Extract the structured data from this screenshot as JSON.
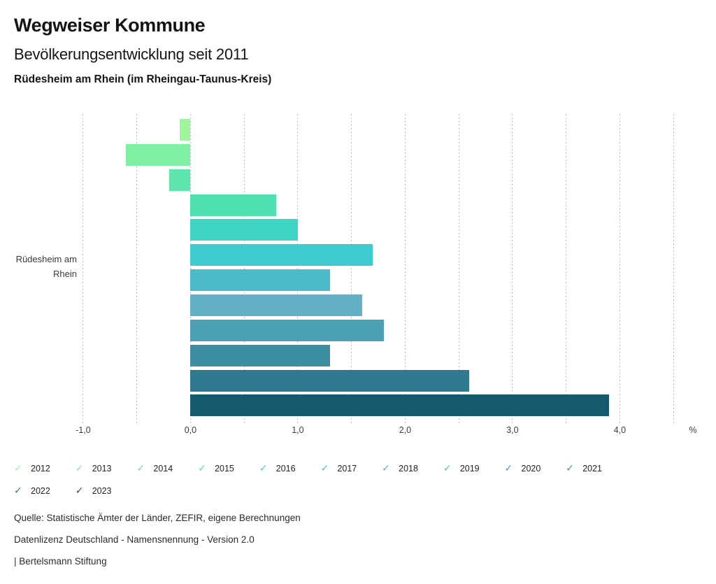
{
  "header": {
    "title": "Wegweiser Kommune",
    "subtitle": "Bevölkerungsentwicklung seit 2011",
    "region": "Rüdesheim am Rhein (im Rheingau-Taunus-Kreis)"
  },
  "chart_data": {
    "type": "bar",
    "orientation": "horizontal",
    "title": "Bevölkerungsentwicklung seit 2011",
    "group_label": "Rüdesheim am Rhein",
    "group_label_lines": [
      "Rüdesheim am",
      "Rhein"
    ],
    "categories": [
      "2012",
      "2013",
      "2014",
      "2015",
      "2016",
      "2017",
      "2018",
      "2019",
      "2020",
      "2021",
      "2022",
      "2023"
    ],
    "values": [
      -0.1,
      -0.6,
      -0.2,
      0.8,
      1.0,
      1.7,
      1.3,
      1.6,
      1.8,
      1.3,
      2.6,
      3.9
    ],
    "colors": [
      "#9df69b",
      "#7ff0a3",
      "#5fe6ae",
      "#4fe0b1",
      "#3ed5c5",
      "#3fc9d0",
      "#4cbccb",
      "#63b1c7",
      "#4ba0b4",
      "#3d8ea2",
      "#2f7a90",
      "#15596f"
    ],
    "unit": "%",
    "xlim": [
      -1.0,
      4.5
    ],
    "grid": true,
    "grid_step": 0.5,
    "xticks": [
      -1.0,
      0.0,
      1.0,
      2.0,
      3.0,
      4.0
    ],
    "xtick_labels": [
      "-1,0",
      "0,0",
      "1,0",
      "2,0",
      "3,0",
      "4,0"
    ],
    "legend_position": "bottom"
  },
  "legend": {
    "items": [
      {
        "label": "2012",
        "check": "✓",
        "color": "#9df69b"
      },
      {
        "label": "2013",
        "check": "✓",
        "color": "#7ff0a3"
      },
      {
        "label": "2014",
        "check": "✓",
        "color": "#5fe6ae"
      },
      {
        "label": "2015",
        "check": "✓",
        "color": "#4fe0b1"
      },
      {
        "label": "2016",
        "check": "✓",
        "color": "#3ed5c5"
      },
      {
        "label": "2017",
        "check": "✓",
        "color": "#3fc9d0"
      },
      {
        "label": "2018",
        "check": "✓",
        "color": "#4cbccb"
      },
      {
        "label": "2019",
        "check": "✓",
        "color": "#63b1c7"
      },
      {
        "label": "2020",
        "check": "✓",
        "color": "#4ba0b4"
      },
      {
        "label": "2021",
        "check": "✓",
        "color": "#3d8ea2"
      },
      {
        "label": "2022",
        "check": "✓",
        "color": "#2f7a90"
      },
      {
        "label": "2023",
        "check": "✓",
        "color": "#15596f"
      }
    ]
  },
  "footer": {
    "source": "Quelle: Statistische Ämter der Länder, ZEFIR, eigene Berechnungen",
    "license": "Datenlizenz Deutschland - Namensnennung - Version 2.0",
    "brand": "| Bertelsmann Stiftung"
  }
}
